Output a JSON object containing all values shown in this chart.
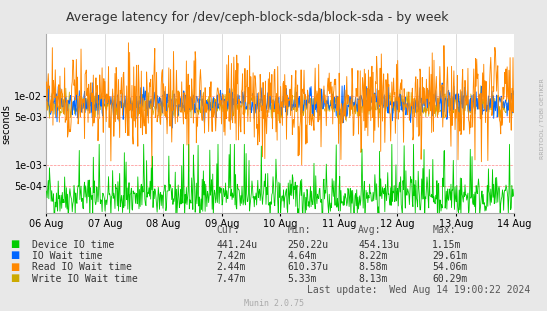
{
  "title": "Average latency for /dev/ceph-block-sda/block-sda - by week",
  "ylabel": "seconds",
  "right_label": "RRDTOOL / TOBI OETIKER",
  "x_tick_labels": [
    "06 Aug",
    "07 Aug",
    "08 Aug",
    "09 Aug",
    "10 Aug",
    "11 Aug",
    "12 Aug",
    "13 Aug",
    "14 Aug"
  ],
  "ymin": 0.0002,
  "ymax": 0.08,
  "background_color": "#e8e8e8",
  "plot_bg_color": "#ffffff",
  "grid_color": "#cccccc",
  "hline_color": "#ff8888",
  "colors": {
    "device_io": "#00cc00",
    "io_wait": "#0066ff",
    "read_io": "#ff8800",
    "write_io": "#ccaa00"
  },
  "legend_entries": [
    {
      "label": "Device IO time",
      "color": "#00cc00"
    },
    {
      "label": "IO Wait time",
      "color": "#0066ff"
    },
    {
      "label": "Read IO Wait time",
      "color": "#ff8800"
    },
    {
      "label": "Write IO Wait time",
      "color": "#ccaa00"
    }
  ],
  "stat_headers": [
    "Cur:",
    "Min:",
    "Avg:",
    "Max:"
  ],
  "stat_rows": [
    [
      "441.24u",
      "250.22u",
      "454.13u",
      "1.15m"
    ],
    [
      "7.42m",
      "4.64m",
      "8.22m",
      "29.61m"
    ],
    [
      "2.44m",
      "610.37u",
      "8.58m",
      "54.06m"
    ],
    [
      "7.47m",
      "5.33m",
      "8.13m",
      "60.29m"
    ]
  ],
  "footer": "Munin 2.0.75",
  "last_update": "Last update:  Wed Aug 14 19:00:22 2024",
  "title_fontsize": 9,
  "axis_fontsize": 7,
  "legend_fontsize": 7
}
